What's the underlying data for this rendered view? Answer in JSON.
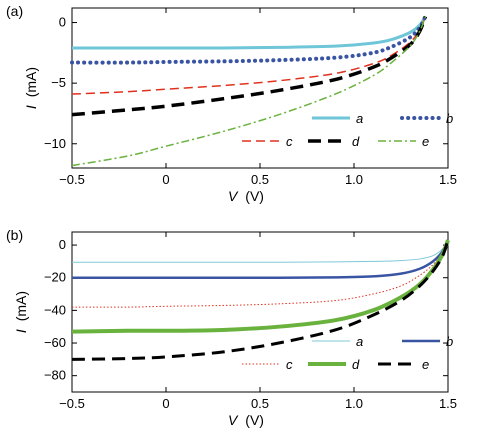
{
  "chart_data": [
    {
      "panel": "(a)",
      "type": "line",
      "xlabel_var": "V",
      "xlabel_unit": "(V)",
      "ylabel_var": "I",
      "ylabel_unit": "(mA)",
      "xlim": [
        -0.5,
        1.5
      ],
      "ylim": [
        -12,
        1.2
      ],
      "xticks": [
        -0.5,
        0,
        0.5,
        1.0,
        1.5
      ],
      "xtick_labels": [
        "−0.5",
        "0",
        "0.5",
        "1.0",
        "1.5"
      ],
      "yticks": [
        0,
        -5,
        -10
      ],
      "ytick_labels": [
        "0",
        "−5",
        "−10"
      ],
      "grid": false,
      "legend_placement": "bottom-right",
      "series": [
        {
          "name": "a",
          "color": "#6ec6d8",
          "style": "solid",
          "width": 3,
          "x": [
            -0.5,
            -0.2,
            0,
            0.3,
            0.6,
            0.9,
            1.1,
            1.2,
            1.3,
            1.35,
            1.38
          ],
          "y": [
            -2.1,
            -2.1,
            -2.1,
            -2.1,
            -2.05,
            -1.95,
            -1.7,
            -1.4,
            -0.8,
            -0.2,
            0.5
          ]
        },
        {
          "name": "b",
          "color": "#3a54a4",
          "style": "dots",
          "width": 4,
          "x": [
            -0.5,
            -0.2,
            0,
            0.3,
            0.6,
            0.9,
            1.1,
            1.2,
            1.3,
            1.35,
            1.38
          ],
          "y": [
            -3.3,
            -3.3,
            -3.25,
            -3.2,
            -3.1,
            -2.9,
            -2.5,
            -2.0,
            -1.2,
            -0.4,
            0.5
          ]
        },
        {
          "name": "c",
          "color": "#e0301e",
          "style": "dashed",
          "width": 1.5,
          "x": [
            -0.5,
            -0.2,
            0,
            0.3,
            0.6,
            0.9,
            1.1,
            1.2,
            1.3,
            1.35,
            1.38
          ],
          "y": [
            -5.9,
            -5.7,
            -5.5,
            -5.2,
            -4.8,
            -4.2,
            -3.4,
            -2.7,
            -1.6,
            -0.6,
            0.5
          ]
        },
        {
          "name": "d",
          "color": "#000000",
          "style": "dashed-thick",
          "width": 3.5,
          "x": [
            -0.5,
            -0.2,
            0,
            0.3,
            0.6,
            0.9,
            1.1,
            1.2,
            1.3,
            1.35,
            1.38
          ],
          "y": [
            -7.6,
            -7.2,
            -6.9,
            -6.3,
            -5.6,
            -4.7,
            -3.7,
            -2.9,
            -1.8,
            -0.7,
            0.5
          ]
        },
        {
          "name": "e",
          "color": "#6ab23e",
          "style": "dashdot",
          "width": 1.5,
          "x": [
            -0.5,
            -0.2,
            0,
            0.3,
            0.6,
            0.9,
            1.1,
            1.2,
            1.3,
            1.35,
            1.38
          ],
          "y": [
            -11.8,
            -11.0,
            -10.2,
            -9.0,
            -7.6,
            -5.9,
            -4.4,
            -3.3,
            -1.9,
            -0.7,
            0.5
          ]
        }
      ]
    },
    {
      "panel": "(b)",
      "type": "line",
      "xlabel_var": "V",
      "xlabel_unit": "(V)",
      "ylabel_var": "I",
      "ylabel_unit": "(mA)",
      "xlim": [
        -0.5,
        1.5
      ],
      "ylim": [
        -90,
        8
      ],
      "xticks": [
        -0.5,
        0,
        0.5,
        1.0,
        1.5
      ],
      "xtick_labels": [
        "−0.5",
        "0",
        "0.5",
        "1.0",
        "1.5"
      ],
      "yticks": [
        0,
        -20,
        -40,
        -60,
        -80
      ],
      "ytick_labels": [
        "0",
        "−20",
        "−40",
        "−60",
        "−80"
      ],
      "grid": false,
      "legend_placement": "bottom-right",
      "series": [
        {
          "name": "a",
          "color": "#7fc9d8",
          "style": "solid",
          "width": 1,
          "x": [
            -0.5,
            -0.2,
            0,
            0.3,
            0.6,
            0.9,
            1.1,
            1.25,
            1.35,
            1.42,
            1.47,
            1.5
          ],
          "y": [
            -10.5,
            -10.5,
            -10.5,
            -10.5,
            -10.5,
            -10.3,
            -10.0,
            -9.5,
            -8.5,
            -6.5,
            -2.5,
            3.0
          ]
        },
        {
          "name": "b",
          "color": "#3a54a4",
          "style": "solid",
          "width": 2.5,
          "x": [
            -0.5,
            -0.2,
            0,
            0.3,
            0.6,
            0.9,
            1.1,
            1.25,
            1.35,
            1.42,
            1.47,
            1.5
          ],
          "y": [
            -20,
            -20,
            -20,
            -20,
            -20,
            -19.8,
            -19.2,
            -17.5,
            -14.5,
            -10.0,
            -4.0,
            3.0
          ]
        },
        {
          "name": "c",
          "color": "#e0301e",
          "style": "dotted",
          "width": 1,
          "x": [
            -0.5,
            -0.2,
            0,
            0.3,
            0.6,
            0.9,
            1.1,
            1.25,
            1.35,
            1.42,
            1.47,
            1.5
          ],
          "y": [
            -38,
            -38,
            -37.5,
            -37,
            -36,
            -34,
            -30,
            -25,
            -18.5,
            -12,
            -5,
            3.0
          ]
        },
        {
          "name": "d",
          "color": "#6ab23e",
          "style": "solid",
          "width": 4,
          "x": [
            -0.5,
            -0.2,
            0,
            0.3,
            0.6,
            0.9,
            1.1,
            1.25,
            1.35,
            1.42,
            1.47,
            1.5
          ],
          "y": [
            -53,
            -52.5,
            -52.5,
            -52,
            -50,
            -46,
            -40,
            -32,
            -24,
            -15,
            -6,
            3.0
          ]
        },
        {
          "name": "e",
          "color": "#000000",
          "style": "dashed-thick",
          "width": 3,
          "x": [
            -0.5,
            -0.2,
            0,
            0.3,
            0.6,
            0.9,
            1.1,
            1.25,
            1.35,
            1.42,
            1.47,
            1.5
          ],
          "y": [
            -70,
            -69.5,
            -68.5,
            -65.5,
            -60,
            -52,
            -43,
            -34,
            -25,
            -16,
            -7,
            3.0
          ]
        }
      ]
    }
  ]
}
